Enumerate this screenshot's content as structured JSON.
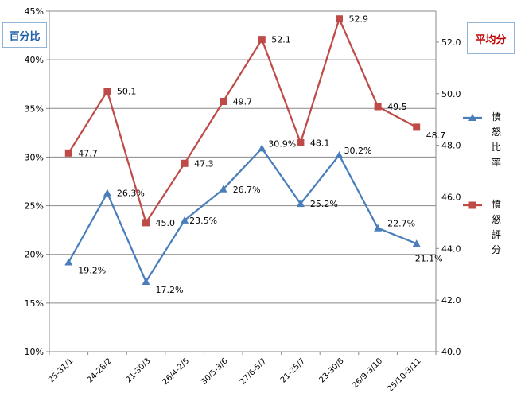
{
  "chart_data": {
    "type": "line",
    "categories": [
      "25-31/1",
      "24-28/2",
      "21-30/3",
      "26/4-2/5",
      "30/5-3/6",
      "27/6-5/7",
      "21-25/7",
      "23-30/8",
      "26/9-3/10",
      "25/10-3/11"
    ],
    "left_axis": {
      "label": "百分比",
      "min": 10,
      "max": 45,
      "step": 5,
      "ticks": [
        "10%",
        "15%",
        "20%",
        "25%",
        "30%",
        "35%",
        "40%",
        "45%"
      ]
    },
    "right_axis": {
      "label": "平均分",
      "min": 40,
      "max": 53,
      "step": 2,
      "ticks": [
        "40.0",
        "42.0",
        "44.0",
        "46.0",
        "48.0",
        "50.0",
        "52.0"
      ]
    },
    "grid": true,
    "legend_position": "right",
    "series": [
      {
        "name": "憤怒比率",
        "name_chars": [
          "憤",
          "怒",
          "比",
          "率"
        ],
        "axis": "left",
        "color": "#4a7ebb",
        "marker": "triangle",
        "values": [
          19.2,
          26.3,
          17.2,
          23.5,
          26.7,
          30.9,
          25.2,
          30.2,
          22.7,
          21.1
        ],
        "labels": [
          "19.2%",
          "26.3%",
          "17.2%",
          "23.5%",
          "26.7%",
          "30.9%",
          "25.2%",
          "30.2%",
          "22.7%",
          "21.1%"
        ]
      },
      {
        "name": "憤怒評分",
        "name_chars": [
          "憤",
          "怒",
          "評",
          "分"
        ],
        "axis": "right",
        "color": "#be4b48",
        "marker": "square",
        "values": [
          47.7,
          50.1,
          45.0,
          47.3,
          49.7,
          52.1,
          48.1,
          52.9,
          49.5,
          48.7
        ],
        "labels": [
          "47.7",
          "50.1",
          "45.0",
          "47.3",
          "49.7",
          "52.1",
          "48.1",
          "52.9",
          "49.5",
          "48.7"
        ]
      }
    ]
  }
}
